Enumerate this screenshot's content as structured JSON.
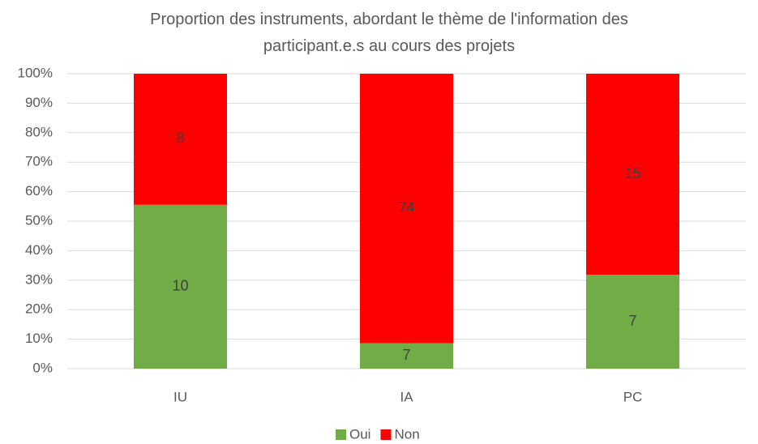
{
  "chart_data": {
    "type": "bar",
    "stacked": "percent",
    "title": "Proportion des instruments, abordant le thème de l'information des participant.e.s au cours des projets",
    "categories": [
      "IU",
      "IA",
      "PC"
    ],
    "series": [
      {
        "name": "Oui",
        "color": "#70ad47",
        "values": [
          10,
          7,
          7
        ]
      },
      {
        "name": "Non",
        "color": "#ff0000",
        "values": [
          8,
          74,
          15
        ]
      }
    ],
    "ylim": [
      0,
      100
    ],
    "yticks": [
      {
        "value": 0,
        "label": "0%"
      },
      {
        "value": 10,
        "label": "10%"
      },
      {
        "value": 20,
        "label": "20%"
      },
      {
        "value": 30,
        "label": "30%"
      },
      {
        "value": 40,
        "label": "40%"
      },
      {
        "value": 50,
        "label": "50%"
      },
      {
        "value": 60,
        "label": "60%"
      },
      {
        "value": 70,
        "label": "70%"
      },
      {
        "value": 80,
        "label": "80%"
      },
      {
        "value": 90,
        "label": "90%"
      },
      {
        "value": 100,
        "label": "100%"
      }
    ],
    "grid": true,
    "legend": "bottom"
  }
}
